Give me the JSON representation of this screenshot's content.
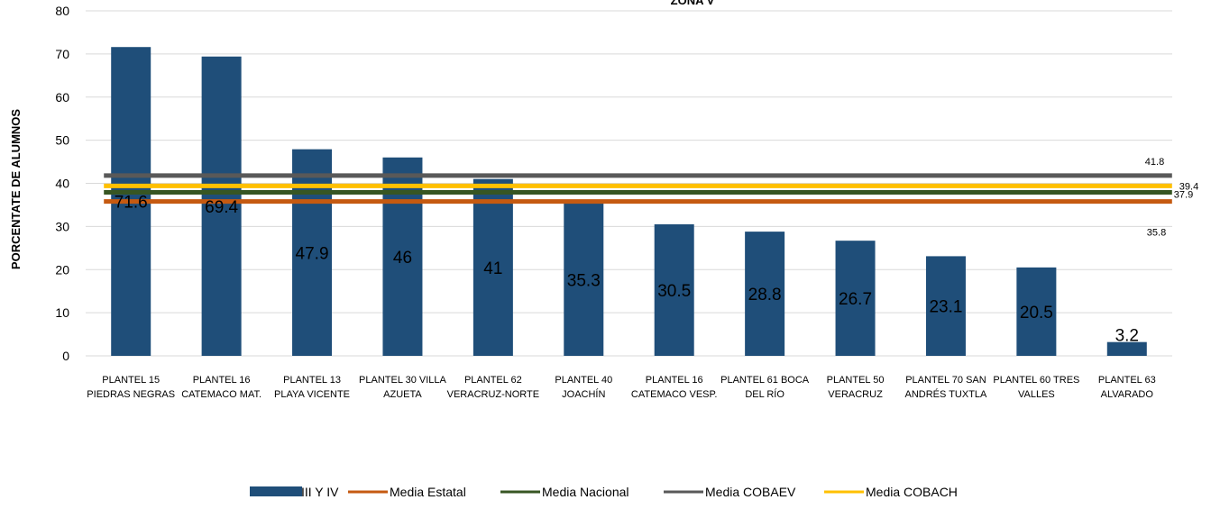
{
  "chart_data": {
    "type": "bar",
    "title": "ZONA V",
    "xlabel": "",
    "ylabel": "PORCENTATE  DE ALUMNOS",
    "ylim": [
      0,
      80
    ],
    "yticks": [
      0,
      10,
      20,
      30,
      40,
      50,
      60,
      70,
      80
    ],
    "grid": true,
    "legend_position": "bottom",
    "categories": [
      [
        "PLANTEL 15",
        "PIEDRAS NEGRAS"
      ],
      [
        "PLANTEL 16",
        "CATEMACO MAT."
      ],
      [
        "PLANTEL 13",
        "PLAYA VICENTE"
      ],
      [
        "PLANTEL 30 VILLA",
        "AZUETA"
      ],
      [
        "PLANTEL 62",
        "VERACRUZ-NORTE"
      ],
      [
        "PLANTEL 40",
        "JOACHÍN"
      ],
      [
        "PLANTEL 16",
        "CATEMACO VESP."
      ],
      [
        "PLANTEL 61 BOCA",
        "DEL RÍO"
      ],
      [
        "PLANTEL 50",
        "VERACRUZ"
      ],
      [
        "PLANTEL 70 SAN",
        "ANDRÉS TUXTLA"
      ],
      [
        "PLANTEL 60 TRES",
        "VALLES"
      ],
      [
        "PLANTEL 63",
        "ALVARADO"
      ]
    ],
    "series": [
      {
        "name": "III Y IV",
        "kind": "bar",
        "color": "#1F4E79",
        "values": [
          71.6,
          69.4,
          47.9,
          46,
          41,
          35.3,
          30.5,
          28.8,
          26.7,
          23.1,
          20.5,
          3.2
        ],
        "labels": [
          "71.6",
          "69.4",
          "47.9",
          "46",
          "41",
          "35.3",
          "30.5",
          "28.8",
          "26.7",
          "23.1",
          "20.5",
          "3.2"
        ]
      },
      {
        "name": "Media Estatal",
        "kind": "line",
        "color": "#C55A11",
        "value": 35.8,
        "label": "35.8"
      },
      {
        "name": "Media Nacional",
        "kind": "line",
        "color": "#375623",
        "value": 37.9,
        "label": "37.9"
      },
      {
        "name": "Media COBAEV",
        "kind": "line",
        "color": "#595959",
        "value": 41.8,
        "label": "41.8"
      },
      {
        "name": "Media COBACH",
        "kind": "line",
        "color": "#FFC000",
        "value": 39.4,
        "label": "39.4"
      }
    ]
  }
}
